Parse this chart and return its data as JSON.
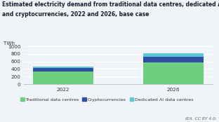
{
  "title_line1": "Estimated electricity demand from traditional data centres, dedicated AI data centres",
  "title_line2": "and cryptocurrencies, 2022 and 2026, base case",
  "categories": [
    "2022",
    "2026"
  ],
  "traditional": [
    330,
    575
  ],
  "crypto": [
    100,
    155
  ],
  "dedicated_ai": [
    30,
    90
  ],
  "colors": {
    "traditional": "#6ecf81",
    "crypto": "#2e4fa3",
    "dedicated_ai": "#5bc8d5"
  },
  "ylabel": "TWh",
  "ylim": [
    0,
    1000
  ],
  "yticks": [
    0,
    200,
    400,
    600,
    800,
    1000
  ],
  "legend_labels": [
    "Traditional data centres",
    "Cryptocurrencies",
    "Dedicated AI data centres"
  ],
  "footer": "IEA. CC BY 4.0.",
  "bg_color": "#f0f4f8",
  "plot_bg": "#f0f4f8",
  "grid_color": "#ffffff",
  "title_color": "#1a1a2e",
  "title_fontsize": 5.5,
  "axis_fontsize": 5.2,
  "legend_fontsize": 4.6,
  "footer_fontsize": 4.3,
  "bar_width": 0.55
}
